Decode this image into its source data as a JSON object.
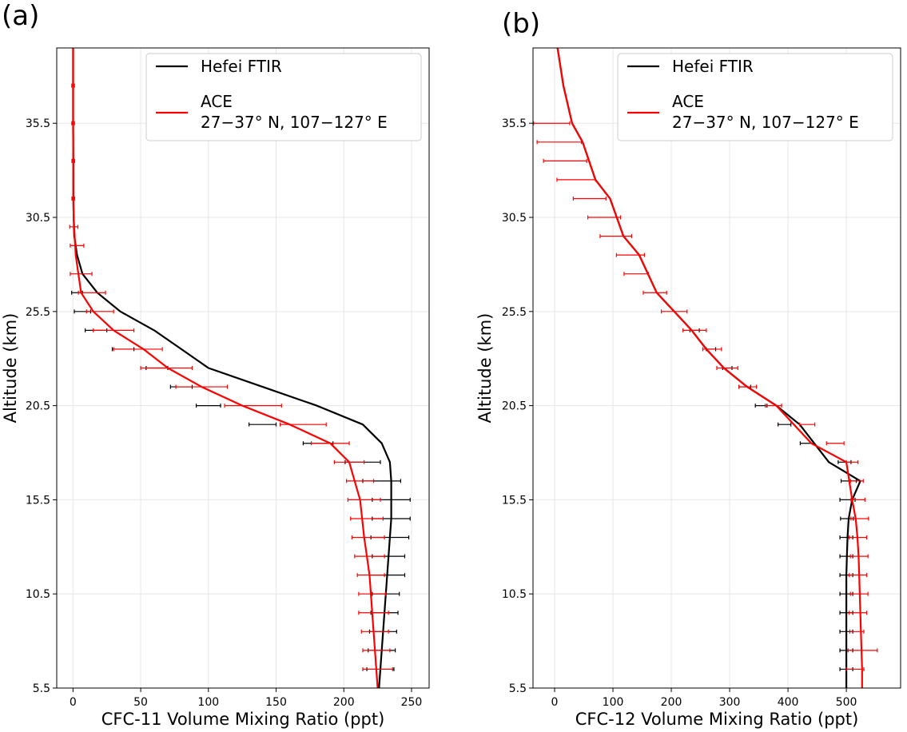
{
  "chart_data": [
    {
      "type": "line",
      "panel_label": "(a)",
      "xlabel": "CFC-11 Volume Mixing Ratio (ppt)",
      "ylabel": "Altitude (km)",
      "xlim": [
        -12,
        263
      ],
      "ylim": [
        5.5,
        39.5
      ],
      "xticks": [
        0,
        50,
        100,
        150,
        200,
        250
      ],
      "yticks": [
        5.5,
        10.5,
        15.5,
        20.5,
        25.5,
        30.5,
        35.5
      ],
      "grid": true,
      "legend_position": "upper right",
      "series": [
        {
          "name": "Hefei FTIR",
          "color": "#000000",
          "x": [
            226,
            227,
            228,
            229,
            230,
            231,
            232,
            233,
            234,
            235,
            235,
            235,
            234,
            228,
            214,
            180,
            140,
            100,
            80,
            60,
            35,
            18,
            7,
            3,
            1,
            0.5,
            0.3,
            0.2,
            0.1,
            0.1,
            0.1
          ],
          "y": [
            5.5,
            6.5,
            7.5,
            8.5,
            9.5,
            10.5,
            11.5,
            12.5,
            13.5,
            14.5,
            15.5,
            16.5,
            17.5,
            18.5,
            19.5,
            20.5,
            21.5,
            22.5,
            23.5,
            24.5,
            25.5,
            26.5,
            27.5,
            28.5,
            29.5,
            30.5,
            31.5,
            33.5,
            35.5,
            37.5,
            39.5
          ],
          "error_y": [
            6.5,
            7.5,
            8.5,
            9.5,
            10.5,
            11.5,
            12.5,
            13.5,
            14.5,
            15.5,
            16.5,
            17.5,
            18.5,
            19.5,
            20.5,
            21.5,
            22.5,
            23.5,
            24.5,
            25.5,
            26.5
          ],
          "error_x": [
            227,
            228,
            229,
            230,
            231,
            232,
            233,
            234,
            235,
            235,
            228,
            214,
            181,
            140,
            100,
            80,
            62,
            37,
            17,
            7,
            3
          ],
          "error_half": [
            10,
            10,
            10,
            10,
            10,
            13,
            12,
            14,
            14,
            14,
            14,
            13,
            11,
            10,
            9,
            8,
            8,
            8,
            8,
            6,
            4
          ]
        },
        {
          "name": "ACE\n27−37° N, 107−127° E",
          "color": "#ff0000",
          "x": [
            225,
            224,
            223,
            222,
            221,
            220,
            219,
            217,
            215,
            212,
            204,
            190,
            160,
            125,
            95,
            70,
            52,
            30,
            15,
            6,
            2,
            0.5,
            0.3,
            0.2,
            0.1,
            0.1
          ],
          "y": [
            5.5,
            6.5,
            7.5,
            8.5,
            9.5,
            10.5,
            11.5,
            12.5,
            13.5,
            15.5,
            17.5,
            18.5,
            19.5,
            20.5,
            21.5,
            22.5,
            23.5,
            24.5,
            25.5,
            26.5,
            28.5,
            30.5,
            31.5,
            33.5,
            35.5,
            39.5
          ],
          "error_y": [
            6.5,
            7.5,
            8.5,
            9.5,
            10.5,
            11.5,
            12.5,
            13.5,
            14.5,
            15.5,
            16.5,
            17.5,
            18.5,
            19.5,
            20.5,
            21.5,
            22.5,
            23.5,
            24.5,
            25.5,
            26.5,
            27.5,
            29.0,
            30.0,
            31.5,
            33.5,
            35.5,
            37.5
          ],
          "error_x": [
            225,
            224,
            223,
            222,
            221,
            220,
            219,
            218,
            217,
            215,
            212,
            204,
            190,
            170,
            133,
            95,
            69,
            48,
            30,
            20,
            14,
            6,
            3,
            0.6,
            0.2,
            0.2,
            0.1,
            0.1
          ],
          "error_half": [
            11,
            10,
            10,
            11,
            10,
            10,
            11,
            12,
            12,
            12,
            10,
            11,
            14,
            17,
            21,
            19,
            19,
            18,
            15,
            10,
            10,
            8,
            5,
            3,
            1,
            1,
            1,
            1
          ]
        }
      ]
    },
    {
      "type": "line",
      "panel_label": "(b)",
      "xlabel": "CFC-12 Volume Mixing Ratio (ppt)",
      "ylabel": "Altitude (km)",
      "xlim": [
        -37,
        593
      ],
      "ylim": [
        5.5,
        39.5
      ],
      "xticks": [
        0,
        100,
        200,
        300,
        400,
        500
      ],
      "yticks": [
        5.5,
        10.5,
        15.5,
        20.5,
        25.5,
        30.5,
        35.5
      ],
      "grid": true,
      "legend_position": "upper right",
      "series": [
        {
          "name": "Hefei FTIR",
          "color": "#000000",
          "x": [
            500,
            500,
            500,
            500,
            500,
            500,
            500,
            501,
            502,
            504,
            510,
            524,
            470,
            420,
            380,
            330,
            290,
            260,
            235,
            205,
            175,
            145,
            118,
            95,
            70,
            48,
            30,
            15,
            5
          ],
          "y": [
            5.5,
            6.5,
            7.5,
            8.5,
            9.5,
            10.5,
            11.5,
            12.5,
            13.5,
            14.5,
            15.5,
            16.5,
            17.5,
            19.5,
            20.5,
            21.5,
            22.5,
            23.5,
            24.5,
            25.5,
            26.5,
            28.5,
            29.5,
            31.5,
            32.5,
            34.5,
            35.5,
            37.5,
            39.5
          ],
          "error_y": [
            6.5,
            7.5,
            8.5,
            9.5,
            10.5,
            11.5,
            12.5,
            13.5,
            14.5,
            15.5,
            16.5,
            17.5,
            18.5,
            19.5,
            20.5,
            21.5,
            22.5,
            23.5,
            24.5
          ],
          "error_x": [
            500,
            500,
            500,
            500,
            500,
            500,
            500,
            500,
            501,
            502,
            504,
            497,
            432,
            394,
            354,
            326,
            296,
            268,
            240
          ],
          "error_half": [
            11,
            11,
            11,
            11,
            11,
            11,
            11,
            11,
            11,
            13,
            13,
            11,
            11,
            11,
            10,
            10,
            8,
            8,
            8
          ]
        },
        {
          "name": "ACE\n27−37° N, 107−127° E",
          "color": "#ff0000",
          "x": [
            527,
            527,
            526,
            525,
            524,
            523,
            522,
            521,
            519,
            516,
            510,
            500,
            440,
            380,
            330,
            290,
            260,
            235,
            205,
            175,
            145,
            118,
            95,
            70,
            48,
            30,
            15,
            5
          ],
          "y": [
            5.5,
            6.5,
            7.5,
            8.5,
            9.5,
            10.5,
            11.5,
            12.5,
            13.5,
            14.5,
            15.5,
            17.5,
            18.5,
            20.5,
            21.5,
            22.5,
            23.5,
            24.5,
            25.5,
            26.5,
            28.5,
            29.5,
            31.5,
            32.5,
            34.5,
            35.5,
            37.5,
            39.5
          ],
          "error_y": [
            6.5,
            7.5,
            8.5,
            9.5,
            10.5,
            11.5,
            12.5,
            13.5,
            14.5,
            15.5,
            16.5,
            17.5,
            18.5,
            19.5,
            20.5,
            21.5,
            22.5,
            23.5,
            24.5,
            25.5,
            26.5,
            27.5,
            28.5,
            29.5,
            30.5,
            31.5,
            32.5,
            33.5,
            34.5,
            35.5
          ],
          "error_x": [
            515,
            528,
            518,
            520,
            522,
            520,
            522,
            520,
            523,
            520,
            518,
            510,
            481,
            433,
            375,
            331,
            296,
            270,
            240,
            205,
            172,
            140,
            130,
            105,
            85,
            60,
            37,
            18,
            8,
            -5
          ],
          "error_half": [
            15,
            25,
            12,
            15,
            15,
            15,
            15,
            15,
            15,
            12,
            11,
            10,
            15,
            13,
            14,
            15,
            18,
            16,
            20,
            22,
            20,
            21,
            24,
            27,
            28,
            28,
            33,
            37,
            38,
            31
          ]
        }
      ]
    }
  ]
}
